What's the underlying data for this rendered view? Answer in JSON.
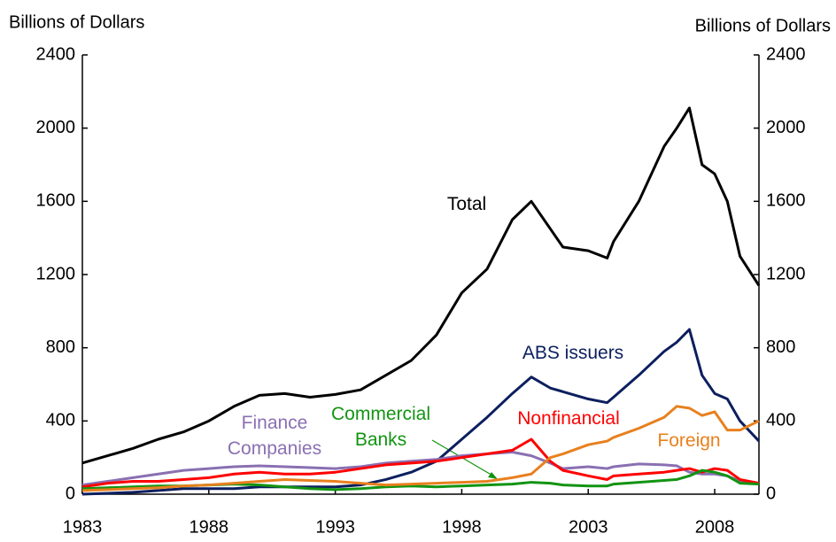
{
  "chart_data": {
    "type": "line",
    "y_label": "Billions of Dollars",
    "y2_label": "Billions of Dollars",
    "x": [
      1983,
      1984,
      1985,
      1986,
      1987,
      1988,
      1989,
      1990,
      1991,
      1992,
      1993,
      1994,
      1995,
      1996,
      1997,
      1998,
      1999,
      2000,
      2000.75,
      2001.5,
      2002,
      2003,
      2003.75,
      2004,
      2005,
      2006,
      2006.5,
      2007,
      2007.5,
      2008,
      2008.5,
      2009,
      2009.75
    ],
    "xlim": [
      1983,
      2009.75
    ],
    "xticks": [
      1983,
      1988,
      1993,
      1998,
      2003,
      2008
    ],
    "ylim": [
      0,
      2400
    ],
    "yticks": [
      0,
      400,
      800,
      1200,
      1600,
      2000,
      2400
    ],
    "y2lim": [
      0,
      2400
    ],
    "y2ticks": [
      0,
      400,
      800,
      1200,
      1600,
      2000,
      2400
    ],
    "series": [
      {
        "name": "Total",
        "color": "#000000",
        "values": [
          170,
          210,
          250,
          300,
          340,
          400,
          480,
          540,
          550,
          530,
          545,
          570,
          650,
          730,
          870,
          1100,
          1230,
          1500,
          1600,
          1450,
          1350,
          1330,
          1290,
          1380,
          1600,
          1900,
          2000,
          2110,
          1800,
          1750,
          1600,
          1300,
          1140
        ]
      },
      {
        "name": "ABS issuers",
        "color": "#0c1f5e",
        "values": [
          0,
          5,
          10,
          20,
          30,
          30,
          30,
          40,
          40,
          40,
          40,
          50,
          80,
          120,
          180,
          300,
          420,
          550,
          640,
          580,
          560,
          520,
          500,
          530,
          650,
          780,
          830,
          900,
          650,
          550,
          520,
          400,
          290
        ]
      },
      {
        "name": "Finance Companies",
        "color": "#8a70b2",
        "values": [
          50,
          70,
          90,
          110,
          130,
          140,
          150,
          155,
          150,
          145,
          140,
          150,
          170,
          180,
          190,
          210,
          220,
          230,
          210,
          170,
          140,
          150,
          140,
          150,
          165,
          160,
          155,
          120,
          110,
          110,
          100,
          70,
          55
        ]
      },
      {
        "name": "Nonfinancial",
        "color": "#ff0000",
        "values": [
          40,
          60,
          70,
          70,
          80,
          90,
          110,
          120,
          110,
          110,
          120,
          140,
          160,
          170,
          180,
          200,
          220,
          240,
          300,
          180,
          130,
          100,
          80,
          100,
          110,
          120,
          130,
          140,
          120,
          140,
          130,
          80,
          60
        ]
      },
      {
        "name": "Commercial Banks",
        "color": "#129412",
        "values": [
          30,
          35,
          40,
          45,
          45,
          50,
          55,
          50,
          40,
          30,
          25,
          30,
          40,
          45,
          40,
          45,
          50,
          55,
          65,
          60,
          50,
          45,
          45,
          55,
          65,
          75,
          80,
          100,
          130,
          120,
          100,
          60,
          55
        ]
      },
      {
        "name": "Foreign",
        "color": "#e8801e",
        "values": [
          20,
          25,
          30,
          35,
          45,
          50,
          60,
          70,
          80,
          75,
          70,
          60,
          50,
          55,
          60,
          65,
          70,
          90,
          110,
          200,
          220,
          270,
          290,
          310,
          360,
          420,
          480,
          470,
          430,
          450,
          350,
          350,
          400
        ]
      }
    ]
  }
}
